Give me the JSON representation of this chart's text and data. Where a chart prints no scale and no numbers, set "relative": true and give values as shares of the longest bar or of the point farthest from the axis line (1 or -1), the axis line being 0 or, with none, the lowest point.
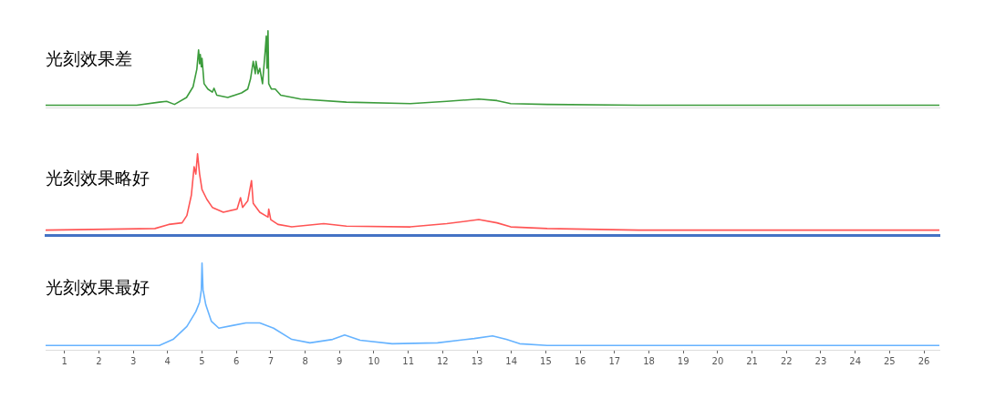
{
  "chart_data": [
    {
      "type": "line",
      "title": "光刻效果差",
      "relative": true,
      "tick_labels": false,
      "xlim": [
        0.45,
        26.45
      ],
      "series": [
        {
          "color": "#3c9c3c",
          "x": [
            0.45,
            3.1,
            3.76,
            3.97,
            4.2,
            4.55,
            4.74,
            4.85,
            4.9,
            4.93,
            4.95,
            4.98,
            5.0,
            5.06,
            5.17,
            5.3,
            5.35,
            5.43,
            5.75,
            6.15,
            6.33,
            6.41,
            6.49,
            6.55,
            6.57,
            6.63,
            6.68,
            6.76,
            6.84,
            6.87,
            6.89,
            6.92,
            6.94,
            7.02,
            7.13,
            7.29,
            7.87,
            9.2,
            11.06,
            12.12,
            13.05,
            13.58,
            13.98,
            15.04,
            17.7,
            26.45
          ],
          "values": [
            0.03,
            0.03,
            0.07,
            0.08,
            0.04,
            0.13,
            0.27,
            0.5,
            0.75,
            0.57,
            0.69,
            0.53,
            0.64,
            0.31,
            0.24,
            0.2,
            0.25,
            0.16,
            0.13,
            0.19,
            0.24,
            0.37,
            0.6,
            0.44,
            0.6,
            0.44,
            0.51,
            0.31,
            0.75,
            0.93,
            0.51,
            1.0,
            0.31,
            0.24,
            0.24,
            0.16,
            0.11,
            0.07,
            0.05,
            0.08,
            0.11,
            0.09,
            0.05,
            0.04,
            0.03,
            0.03
          ]
        }
      ]
    },
    {
      "type": "line",
      "title": "光刻效果略好",
      "relative": true,
      "tick_labels": false,
      "xlim": [
        0.45,
        26.45
      ],
      "series": [
        {
          "color": "#ff5555",
          "x": [
            0.45,
            3.63,
            4.03,
            4.42,
            4.56,
            4.69,
            4.77,
            4.82,
            4.87,
            4.93,
            5.0,
            5.14,
            5.3,
            5.62,
            6.02,
            6.12,
            6.18,
            6.33,
            6.44,
            6.49,
            6.68,
            6.92,
            6.94,
            7.0,
            7.21,
            7.61,
            8.54,
            9.2,
            11.06,
            12.12,
            13.05,
            13.58,
            13.98,
            15.04,
            17.7,
            26.45
          ],
          "values": [
            0.06,
            0.08,
            0.13,
            0.15,
            0.24,
            0.49,
            0.84,
            0.75,
            1.0,
            0.75,
            0.56,
            0.44,
            0.34,
            0.28,
            0.32,
            0.46,
            0.34,
            0.42,
            0.67,
            0.39,
            0.28,
            0.22,
            0.32,
            0.19,
            0.13,
            0.1,
            0.14,
            0.11,
            0.1,
            0.14,
            0.19,
            0.15,
            0.1,
            0.08,
            0.06,
            0.06
          ]
        }
      ]
    },
    {
      "type": "line",
      "title": "光刻效果最好",
      "relative": true,
      "tick_labels": "x",
      "xlim": [
        0.45,
        26.45
      ],
      "xticks": [
        1,
        2,
        3,
        4,
        5,
        6,
        7,
        8,
        9,
        10,
        11,
        12,
        13,
        14,
        15,
        16,
        17,
        18,
        19,
        20,
        21,
        22,
        23,
        24,
        25,
        26
      ],
      "series": [
        {
          "color": "#66b3ff",
          "x": [
            0.45,
            3.76,
            4.16,
            4.56,
            4.82,
            4.93,
            4.98,
            5.0,
            5.03,
            5.11,
            5.27,
            5.49,
            5.88,
            6.28,
            6.68,
            7.08,
            7.61,
            8.14,
            8.8,
            9.15,
            9.6,
            10.53,
            11.85,
            12.92,
            13.45,
            13.85,
            14.24,
            15.04,
            26.45
          ],
          "values": [
            0.05,
            0.05,
            0.12,
            0.27,
            0.44,
            0.55,
            0.69,
            1.0,
            0.69,
            0.52,
            0.33,
            0.25,
            0.28,
            0.31,
            0.31,
            0.25,
            0.12,
            0.08,
            0.12,
            0.17,
            0.11,
            0.07,
            0.08,
            0.13,
            0.16,
            0.12,
            0.07,
            0.05,
            0.05
          ]
        }
      ]
    }
  ]
}
